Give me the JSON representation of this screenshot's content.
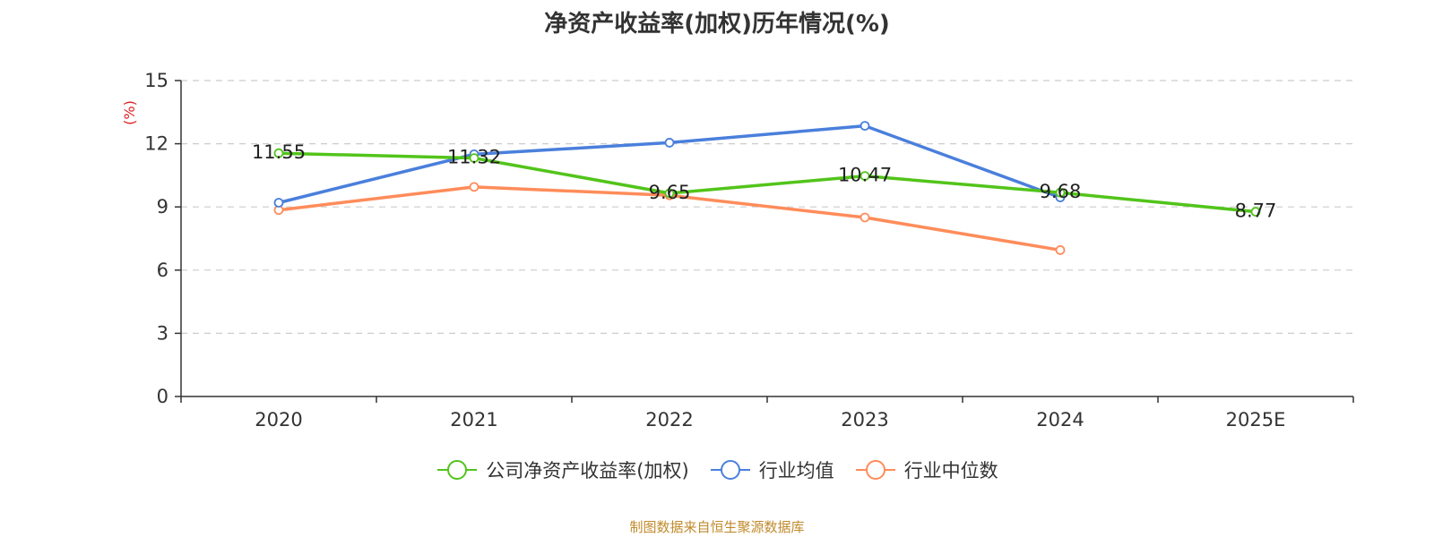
{
  "chart_data": {
    "type": "line",
    "title": "净资产收益率(加权)历年情况(%)",
    "ylabel": "(%)",
    "xlabel": "",
    "categories": [
      "2020",
      "2021",
      "2022",
      "2023",
      "2024",
      "2025E"
    ],
    "ylim": [
      0,
      15
    ],
    "yticks": [
      0,
      3,
      6,
      9,
      12,
      15
    ],
    "grid": true,
    "legend_position": "bottom-center",
    "series": [
      {
        "name": "公司净资产收益率(加权)",
        "color": "#52c41a",
        "values": [
          11.55,
          11.32,
          9.65,
          10.47,
          9.68,
          8.77
        ],
        "labels": [
          "11.55",
          "11.32",
          "9.65",
          "10.47",
          "9.68",
          "8.77"
        ]
      },
      {
        "name": "行业均值",
        "color": "#4a7fdc",
        "values": [
          9.2,
          11.5,
          12.05,
          12.85,
          9.45,
          null
        ],
        "labels": []
      },
      {
        "name": "行业中位数",
        "color": "#ff8c5a",
        "values": [
          8.85,
          9.95,
          9.55,
          8.5,
          6.95,
          null
        ],
        "labels": []
      }
    ]
  },
  "footer": {
    "source": "制图数据来自恒生聚源数据库"
  }
}
